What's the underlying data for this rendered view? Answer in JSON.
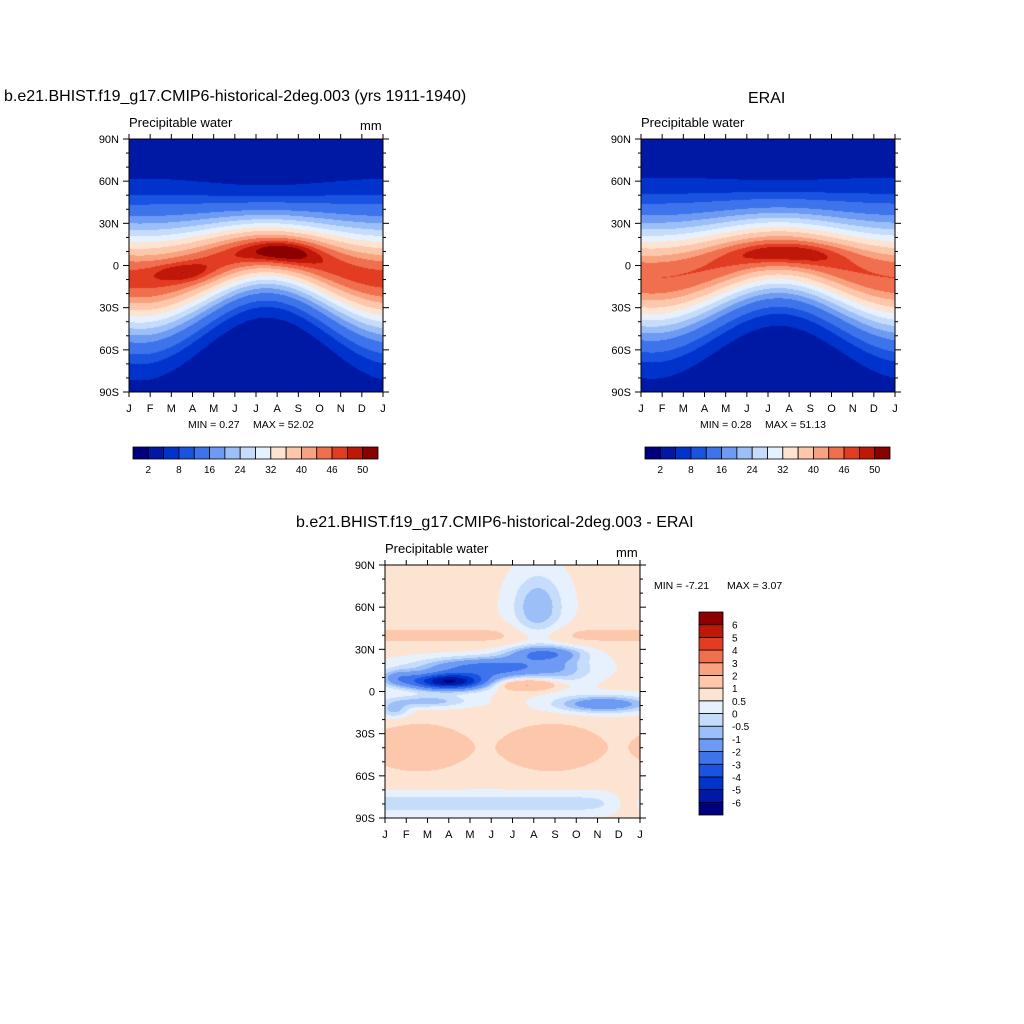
{
  "chart_data": [
    {
      "type": "heatmap",
      "title": "b.e21.BHIST.f19_g17.CMIP6-historical-2deg.003 (yrs 1911-1940)",
      "subtitle_left": "Precipitable water",
      "subtitle_right": "mm",
      "x_tick_labels": [
        "J",
        "F",
        "M",
        "A",
        "M",
        "J",
        "J",
        "A",
        "S",
        "O",
        "N",
        "D",
        "J"
      ],
      "y_tick_labels": [
        "90N",
        "60N",
        "30N",
        "0",
        "30S",
        "60S",
        "90S"
      ],
      "ylim": [
        -90,
        90
      ],
      "min_label": "MIN =   0.27",
      "max_label": "MAX =  52.02",
      "min": 0.27,
      "max": 52.02,
      "colorbar": {
        "orientation": "horizontal",
        "levels": [
          2,
          5,
          8,
          11,
          16,
          20,
          24,
          28,
          32,
          36,
          40,
          43,
          46,
          48,
          50
        ],
        "tick_labels": [
          "2",
          "8",
          "16",
          "24",
          "32",
          "40",
          "46",
          "50"
        ],
        "colors": [
          "#00007f",
          "#0019a5",
          "#0033cc",
          "#1a53e0",
          "#3d73eb",
          "#6d9af2",
          "#9cbff7",
          "#c6dcfb",
          "#e7f1fd",
          "#fde4d2",
          "#fcc7ab",
          "#f8a27f",
          "#f06f4e",
          "#e23c22",
          "#c01808",
          "#8b0000"
        ]
      }
    },
    {
      "type": "heatmap",
      "title": "ERAI",
      "subtitle_left": "Precipitable water",
      "x_tick_labels": [
        "J",
        "F",
        "M",
        "A",
        "M",
        "J",
        "J",
        "A",
        "S",
        "O",
        "N",
        "D",
        "J"
      ],
      "y_tick_labels": [
        "90N",
        "60N",
        "30N",
        "0",
        "30S",
        "60S",
        "90S"
      ],
      "ylim": [
        -90,
        90
      ],
      "min_label": "MIN =   0.28",
      "max_label": "MAX =  51.13",
      "min": 0.28,
      "max": 51.13,
      "colorbar": {
        "orientation": "horizontal",
        "levels": [
          2,
          5,
          8,
          11,
          16,
          20,
          24,
          28,
          32,
          36,
          40,
          43,
          46,
          48,
          50
        ],
        "tick_labels": [
          "2",
          "8",
          "16",
          "24",
          "32",
          "40",
          "46",
          "50"
        ],
        "colors": [
          "#00007f",
          "#0019a5",
          "#0033cc",
          "#1a53e0",
          "#3d73eb",
          "#6d9af2",
          "#9cbff7",
          "#c6dcfb",
          "#e7f1fd",
          "#fde4d2",
          "#fcc7ab",
          "#f8a27f",
          "#f06f4e",
          "#e23c22",
          "#c01808",
          "#8b0000"
        ]
      }
    },
    {
      "type": "heatmap",
      "title": "b.e21.BHIST.f19_g17.CMIP6-historical-2deg.003 - ERAI",
      "subtitle_left": "Precipitable water",
      "subtitle_right": "mm",
      "x_tick_labels": [
        "J",
        "F",
        "M",
        "A",
        "M",
        "J",
        "J",
        "A",
        "S",
        "O",
        "N",
        "D",
        "J"
      ],
      "y_tick_labels": [
        "90N",
        "60N",
        "30N",
        "0",
        "30S",
        "60S",
        "90S"
      ],
      "ylim": [
        -90,
        90
      ],
      "min_label": "MIN =  -7.21",
      "max_label": "MAX =   3.07",
      "min": -7.21,
      "max": 3.07,
      "colorbar": {
        "orientation": "vertical",
        "levels": [
          -6,
          -5,
          -4,
          -3,
          -2,
          -1,
          -0.5,
          0,
          0.5,
          1,
          2,
          3,
          4,
          5,
          6
        ],
        "tick_labels": [
          "-6",
          "-5",
          "-4",
          "-3",
          "-2",
          "-1",
          "-0.5",
          "0",
          "0.5",
          "1",
          "2",
          "3",
          "4",
          "5",
          "6"
        ],
        "colors": [
          "#00007f",
          "#0019a5",
          "#0033cc",
          "#1a53e0",
          "#3d73eb",
          "#6d9af2",
          "#9cbff7",
          "#c6dcfb",
          "#e7f1fd",
          "#fde4d2",
          "#fcc7ab",
          "#f8a27f",
          "#f06f4e",
          "#e23c22",
          "#c01808",
          "#8b0000"
        ]
      }
    }
  ]
}
